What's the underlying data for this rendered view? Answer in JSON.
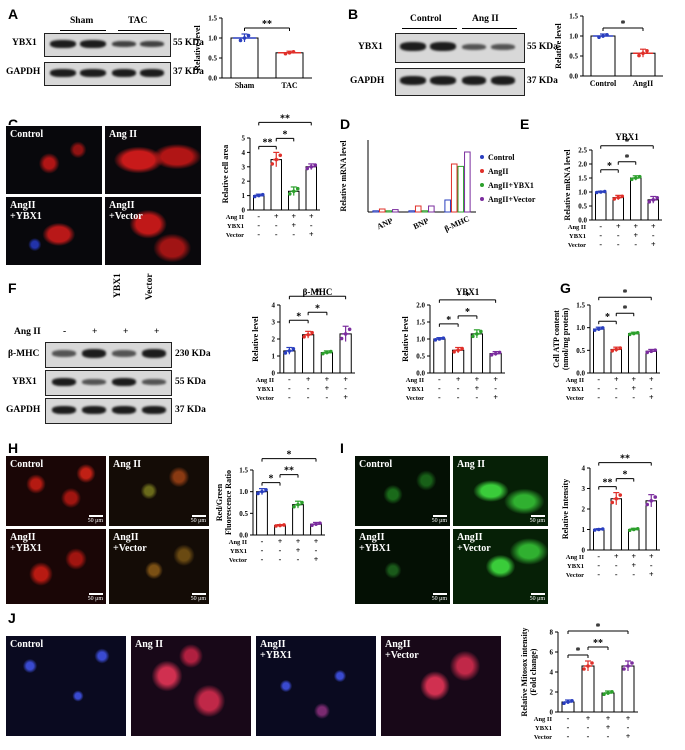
{
  "panels": {
    "A": {
      "letter": "A",
      "groups": [
        "Sham",
        "TAC"
      ],
      "bands": [
        "YBX1",
        "GAPDH"
      ],
      "sizes": [
        "55 KDa",
        "37 KDa"
      ]
    },
    "B": {
      "letter": "B",
      "groups": [
        "Control",
        "Ang II"
      ],
      "bands": [
        "YBX1",
        "GAPDH"
      ],
      "sizes": [
        "55 KDa",
        "37 KDa"
      ]
    },
    "C": {
      "letter": "C",
      "images": [
        "Control",
        "Ang II",
        "AngII\n+YBX1",
        "AngII\n+Vector"
      ]
    },
    "D": {
      "letter": "D"
    },
    "E": {
      "letter": "E"
    },
    "F": {
      "letter": "F",
      "lane_labels": [
        "-",
        "+",
        "+",
        "+"
      ],
      "treat_label": "Ang II",
      "top_labels": [
        "YBX1",
        "Vector"
      ],
      "bands": [
        "β-MHC",
        "YBX1",
        "GAPDH"
      ],
      "sizes": [
        "230 KDa",
        "55 KDa",
        "37 KDa"
      ]
    },
    "G": {
      "letter": "G"
    },
    "H": {
      "letter": "H",
      "images": [
        "Control",
        "Ang II",
        "AngII\n+YBX1",
        "AngII\n+Vector"
      ],
      "scale": "50 μm"
    },
    "I": {
      "letter": "I",
      "images": [
        "Control",
        "Ang II",
        "AngII\n+YBX1",
        "AngII\n+Vector"
      ],
      "scale": "50 μm"
    },
    "J": {
      "letter": "J",
      "images": [
        "Control",
        "Ang II",
        "AngII\n+YBX1",
        "AngII\n+Vector"
      ]
    }
  },
  "row_labels": {
    "angii": "Ang II",
    "ybx1": "YBX1",
    "vector": "Vector"
  },
  "chart_data": [
    {
      "id": "A",
      "type": "bar",
      "categories": [
        "Sham",
        "TAC"
      ],
      "values": [
        1.0,
        0.63
      ],
      "errors": [
        0.1,
        0.04
      ],
      "ylabel": "Relative level",
      "ylim": [
        0,
        1.5
      ],
      "yticks": [
        0,
        0.5,
        1.0,
        1.5
      ],
      "colors": [
        "#2a3fbf",
        "#e0302a"
      ],
      "sig": [
        {
          "a": 0,
          "b": 1,
          "label": "**"
        }
      ]
    },
    {
      "id": "B",
      "type": "bar",
      "categories": [
        "Control",
        "AngII"
      ],
      "values": [
        1.0,
        0.57
      ],
      "errors": [
        0.05,
        0.1
      ],
      "ylabel": "Relative level",
      "ylim": [
        0,
        1.5
      ],
      "yticks": [
        0,
        0.5,
        1.0,
        1.5
      ],
      "colors": [
        "#2a3fbf",
        "#e0302a"
      ],
      "sig": [
        {
          "a": 0,
          "b": 1,
          "label": "*"
        }
      ]
    },
    {
      "id": "C",
      "type": "bar",
      "categories": [
        "",
        "",
        "",
        ""
      ],
      "values": [
        1.0,
        3.5,
        1.3,
        3.0
      ],
      "errors": [
        0.1,
        0.5,
        0.3,
        0.2
      ],
      "ylabel": "Relative cell area",
      "ylim": [
        0,
        5
      ],
      "yticks": [
        0,
        1,
        2,
        3,
        4,
        5
      ],
      "colors": [
        "#2a3fbf",
        "#e0302a",
        "#2ca02c",
        "#7b2d9e"
      ],
      "rows": {
        "angii": [
          "-",
          "+",
          "+",
          "+"
        ],
        "ybx1": [
          "-",
          "-",
          "+",
          "-"
        ],
        "vector": [
          "-",
          "-",
          "-",
          "+"
        ]
      },
      "sig": [
        {
          "a": 0,
          "b": 1,
          "label": "**"
        },
        {
          "a": 1,
          "b": 2,
          "label": "*"
        },
        {
          "a": 0,
          "b": 3,
          "label": "**"
        }
      ]
    },
    {
      "id": "E",
      "type": "bar",
      "title": "YBX1",
      "categories": [
        "",
        "",
        "",
        ""
      ],
      "values": [
        1.0,
        0.8,
        1.5,
        0.72
      ],
      "errors": [
        0.03,
        0.08,
        0.08,
        0.12
      ],
      "ylabel": "Relative mRNA level",
      "ylim": [
        0,
        2.5
      ],
      "yticks": [
        0,
        0.5,
        1.0,
        1.5,
        2.0,
        2.5
      ],
      "colors": [
        "#2a3fbf",
        "#e0302a",
        "#2ca02c",
        "#7b2d9e"
      ],
      "rows": {
        "angii": [
          "-",
          "+",
          "+",
          "+"
        ],
        "ybx1": [
          "-",
          "-",
          "+",
          "-"
        ],
        "vector": [
          "-",
          "-",
          "-",
          "+"
        ]
      },
      "sig": [
        {
          "a": 0,
          "b": 1,
          "label": "*"
        },
        {
          "a": 1,
          "b": 2,
          "label": "*"
        },
        {
          "a": 0,
          "b": 3,
          "label": "*"
        }
      ]
    },
    {
      "id": "F1",
      "type": "bar",
      "title": "β-MHC",
      "categories": [
        "",
        "",
        "",
        ""
      ],
      "values": [
        1.3,
        2.25,
        1.2,
        2.3
      ],
      "errors": [
        0.2,
        0.2,
        0.1,
        0.45
      ],
      "ylabel": "Relative level",
      "ylim": [
        0,
        4
      ],
      "yticks": [
        0,
        1,
        2,
        3,
        4
      ],
      "colors": [
        "#2a3fbf",
        "#e0302a",
        "#2ca02c",
        "#7b2d9e"
      ],
      "rows": {
        "angii": [
          "-",
          "+",
          "+",
          "+"
        ],
        "ybx1": [
          "-",
          "-",
          "+",
          "-"
        ],
        "vector": [
          "-",
          "-",
          "-",
          "+"
        ]
      },
      "sig": [
        {
          "a": 0,
          "b": 1,
          "label": "*"
        },
        {
          "a": 1,
          "b": 2,
          "label": "*"
        },
        {
          "a": 0,
          "b": 3,
          "label": "*"
        }
      ]
    },
    {
      "id": "F2",
      "type": "bar",
      "title": "YBX1",
      "categories": [
        "",
        "",
        "",
        ""
      ],
      "values": [
        1.0,
        0.67,
        1.15,
        0.57
      ],
      "errors": [
        0.04,
        0.08,
        0.12,
        0.06
      ],
      "ylabel": "Relative level",
      "ylim": [
        0,
        2
      ],
      "yticks": [
        0,
        0.5,
        1.0,
        1.5,
        2.0
      ],
      "colors": [
        "#2a3fbf",
        "#e0302a",
        "#2ca02c",
        "#7b2d9e"
      ],
      "rows": {
        "angii": [
          "-",
          "+",
          "+",
          "+"
        ],
        "ybx1": [
          "-",
          "-",
          "+",
          "-"
        ],
        "vector": [
          "-",
          "-",
          "-",
          "+"
        ]
      },
      "sig": [
        {
          "a": 0,
          "b": 1,
          "label": "*"
        },
        {
          "a": 1,
          "b": 2,
          "label": "*"
        },
        {
          "a": 0,
          "b": 3,
          "label": "*"
        }
      ]
    },
    {
      "id": "G",
      "type": "bar",
      "categories": [
        "",
        "",
        "",
        ""
      ],
      "values": [
        0.97,
        0.52,
        0.87,
        0.48
      ],
      "errors": [
        0.04,
        0.05,
        0.03,
        0.04
      ],
      "ylabel": "Cell ATP content\n(nmol/mg protein)",
      "ylim": [
        0,
        1.5
      ],
      "yticks": [
        0,
        0.5,
        1.0,
        1.5
      ],
      "colors": [
        "#2a3fbf",
        "#e0302a",
        "#2ca02c",
        "#7b2d9e"
      ],
      "rows": {
        "angii": [
          "-",
          "+",
          "+",
          "+"
        ],
        "ybx1": [
          "-",
          "-",
          "+",
          "-"
        ],
        "vector": [
          "-",
          "-",
          "-",
          "+"
        ]
      },
      "sig": [
        {
          "a": 0,
          "b": 1,
          "label": "*"
        },
        {
          "a": 1,
          "b": 2,
          "label": "*"
        },
        {
          "a": 0,
          "b": 3,
          "label": "*"
        }
      ]
    },
    {
      "id": "H",
      "type": "bar",
      "categories": [
        "",
        "",
        "",
        ""
      ],
      "values": [
        1.0,
        0.22,
        0.7,
        0.25
      ],
      "errors": [
        0.07,
        0.02,
        0.08,
        0.04
      ],
      "ylabel": "Red/Green\nFluorescence Ratio",
      "ylim": [
        0,
        1.5
      ],
      "yticks": [
        0,
        0.5,
        1.0,
        1.5
      ],
      "colors": [
        "#2a3fbf",
        "#e0302a",
        "#2ca02c",
        "#7b2d9e"
      ],
      "rows": {
        "angii": [
          "-",
          "+",
          "+",
          "+"
        ],
        "ybx1": [
          "-",
          "-",
          "+",
          "-"
        ],
        "vector": [
          "-",
          "-",
          "-",
          "+"
        ]
      },
      "sig": [
        {
          "a": 0,
          "b": 1,
          "label": "*"
        },
        {
          "a": 1,
          "b": 2,
          "label": "**"
        },
        {
          "a": 0,
          "b": 3,
          "label": "*"
        }
      ]
    },
    {
      "id": "I",
      "type": "bar",
      "categories": [
        "",
        "",
        "",
        ""
      ],
      "values": [
        1.0,
        2.5,
        1.0,
        2.4
      ],
      "errors": [
        0.04,
        0.3,
        0.06,
        0.3
      ],
      "ylabel": "Relative Intensity",
      "ylim": [
        0,
        4
      ],
      "yticks": [
        0,
        1,
        2,
        3,
        4
      ],
      "colors": [
        "#2a3fbf",
        "#e0302a",
        "#2ca02c",
        "#7b2d9e"
      ],
      "rows": {
        "angii": [
          "-",
          "+",
          "+",
          "+"
        ],
        "ybx1": [
          "-",
          "-",
          "+",
          "-"
        ],
        "vector": [
          "-",
          "-",
          "-",
          "+"
        ]
      },
      "sig": [
        {
          "a": 0,
          "b": 1,
          "label": "**"
        },
        {
          "a": 1,
          "b": 2,
          "label": "*"
        },
        {
          "a": 0,
          "b": 3,
          "label": "**"
        }
      ]
    },
    {
      "id": "J",
      "type": "bar",
      "categories": [
        "",
        "",
        "",
        ""
      ],
      "values": [
        1.0,
        4.6,
        1.9,
        4.6
      ],
      "errors": [
        0.2,
        0.5,
        0.2,
        0.5
      ],
      "ylabel": "Relative Mitosox intensity\n(Fold change)",
      "ylim": [
        0,
        8
      ],
      "yticks": [
        0,
        2,
        4,
        6,
        8
      ],
      "colors": [
        "#2a3fbf",
        "#e0302a",
        "#2ca02c",
        "#7b2d9e"
      ],
      "rows": {
        "angii": [
          "-",
          "+",
          "+",
          "+"
        ],
        "ybx1": [
          "-",
          "-",
          "+",
          "-"
        ],
        "vector": [
          "-",
          "-",
          "-",
          "+"
        ]
      },
      "sig": [
        {
          "a": 0,
          "b": 1,
          "label": "*"
        },
        {
          "a": 1,
          "b": 2,
          "label": "**"
        },
        {
          "a": 0,
          "b": 3,
          "label": "*"
        }
      ]
    },
    {
      "id": "D",
      "type": "bar",
      "categories": [
        "ANP",
        "BNP",
        "β-MHC"
      ],
      "series": [
        {
          "name": "Control",
          "values": [
            1,
            1,
            10
          ]
        },
        {
          "name": "AngII",
          "values": [
            2.5,
            5,
            40
          ]
        },
        {
          "name": "AngII+YBX1",
          "values": [
            1,
            1,
            38
          ]
        },
        {
          "name": "AngII+Vector",
          "values": [
            2,
            5,
            50
          ]
        }
      ],
      "ylabel": "Relative mRNA level",
      "ylim": [
        0,
        60
      ],
      "colors": [
        "#2a3fbf",
        "#e0302a",
        "#2ca02c",
        "#7b2d9e"
      ]
    }
  ]
}
